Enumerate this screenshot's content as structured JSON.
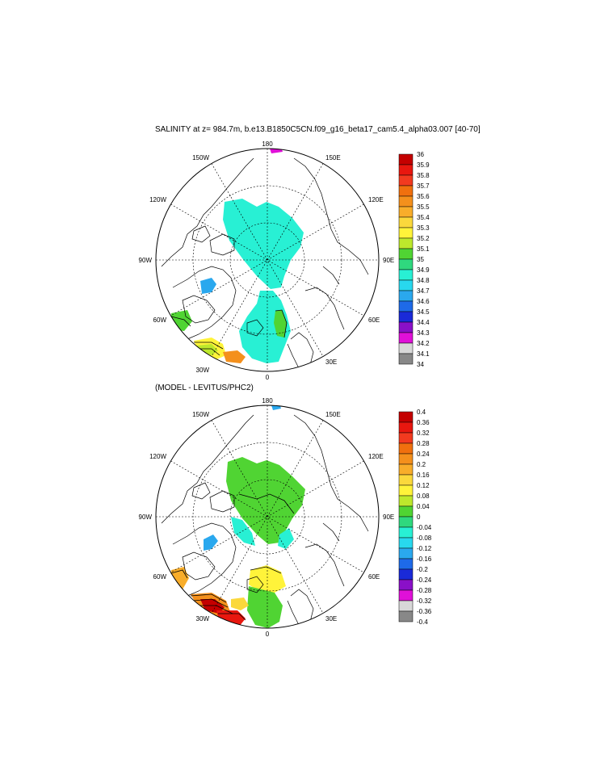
{
  "top_panel": {
    "title": "SALINITY at z= 984.7m, b.e13.B1850C5CN.f09_g16_beta17_cam5.4_alpha03.007 [40-70]",
    "longitude_labels": [
      "180",
      "150E",
      "120E",
      "90E",
      "60E",
      "30E",
      "0",
      "30W",
      "60W",
      "90W",
      "120W",
      "150W"
    ],
    "colorbar": {
      "labels": [
        "36",
        "35.9",
        "35.8",
        "35.7",
        "35.6",
        "35.5",
        "35.4",
        "35.3",
        "35.2",
        "35.1",
        "35",
        "34.9",
        "34.8",
        "34.7",
        "34.6",
        "34.5",
        "34.4",
        "34.3",
        "34.2",
        "34.1",
        "34"
      ],
      "colors": [
        "#c40000",
        "#e8170f",
        "#f23a1f",
        "#f0700e",
        "#f4901c",
        "#f8ad2a",
        "#fbd83c",
        "#fff33a",
        "#bde82c",
        "#50d433",
        "#2fd87e",
        "#28f0d4",
        "#28d8ee",
        "#2aa8ee",
        "#1e6ae8",
        "#1a2ad8",
        "#8a10c8",
        "#e010d8",
        "#d8d8d8",
        "#888888"
      ]
    }
  },
  "bottom_panel": {
    "title": "(MODEL - LEVITUS/PHC2)",
    "longitude_labels": [
      "180",
      "150E",
      "120E",
      "90E",
      "60E",
      "30E",
      "0",
      "30W",
      "60W",
      "90W",
      "120W",
      "150W"
    ],
    "colorbar": {
      "labels": [
        "0.4",
        "0.36",
        "0.32",
        "0.28",
        "0.24",
        "0.2",
        "0.16",
        "0.12",
        "0.08",
        "0.04",
        "0",
        "-0.04",
        "-0.08",
        "-0.12",
        "-0.16",
        "-0.2",
        "-0.24",
        "-0.28",
        "-0.32",
        "-0.36",
        "-0.4"
      ],
      "colors": [
        "#c40000",
        "#e8170f",
        "#f23a1f",
        "#f0700e",
        "#f4901c",
        "#f8ad2a",
        "#fbd83c",
        "#fff33a",
        "#bde82c",
        "#50d433",
        "#2fd87e",
        "#28f0d4",
        "#28d8ee",
        "#2aa8ee",
        "#1e6ae8",
        "#1a2ad8",
        "#8a10c8",
        "#e010d8",
        "#d8d8d8",
        "#888888"
      ]
    }
  }
}
